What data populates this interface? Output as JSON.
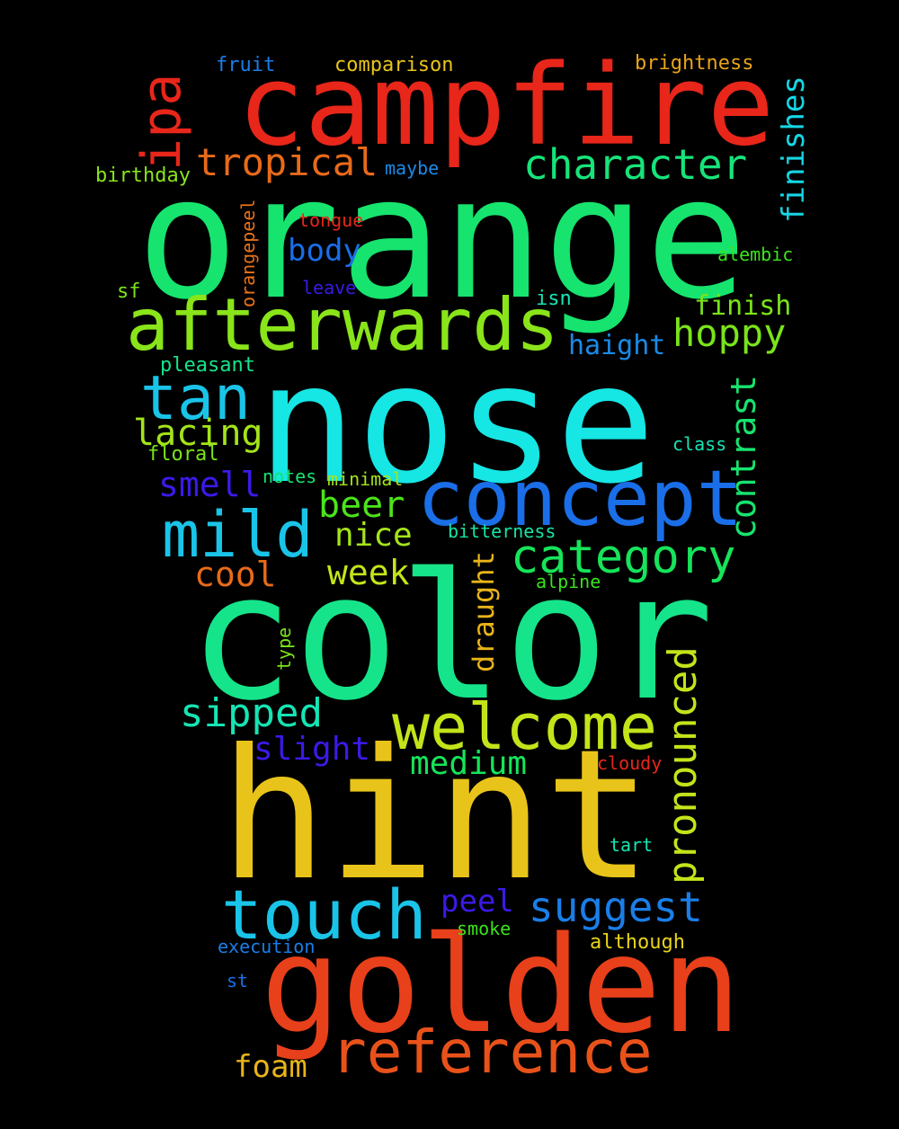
{
  "words": [
    {
      "text": "orange",
      "color": "#16e46e"
    },
    {
      "text": "nose",
      "color": "#16e6e4"
    },
    {
      "text": "color",
      "color": "#16e48a"
    },
    {
      "text": "hint",
      "color": "#e8c41a"
    },
    {
      "text": "campfire",
      "color": "#e8261a"
    },
    {
      "text": "golden",
      "color": "#e8401a"
    },
    {
      "text": "concept",
      "color": "#1a6ee8"
    },
    {
      "text": "afterwards",
      "color": "#8ae41a"
    },
    {
      "text": "welcome",
      "color": "#c4e41a"
    },
    {
      "text": "mild",
      "color": "#1ac4e8"
    },
    {
      "text": "touch",
      "color": "#1ac4e8"
    },
    {
      "text": "reference",
      "color": "#e8521a"
    },
    {
      "text": "tan",
      "color": "#1ac4e8"
    },
    {
      "text": "ipa",
      "color": "#e8261a"
    },
    {
      "text": "category",
      "color": "#16e45a"
    },
    {
      "text": "character",
      "color": "#16e47a"
    },
    {
      "text": "tropical",
      "color": "#e86a1a"
    },
    {
      "text": "suggest",
      "color": "#1a7ee8"
    },
    {
      "text": "pronounced",
      "color": "#c4e41a"
    },
    {
      "text": "sipped",
      "color": "#16e4b4"
    },
    {
      "text": "contrast",
      "color": "#16e46e"
    },
    {
      "text": "hoppy",
      "color": "#7ae41a"
    },
    {
      "text": "lacing",
      "color": "#a4e41a"
    },
    {
      "text": "beer",
      "color": "#4ae41a"
    },
    {
      "text": "medium",
      "color": "#16e45a"
    },
    {
      "text": "finishes",
      "color": "#16d6e4"
    },
    {
      "text": "slight",
      "color": "#3a1ae8"
    },
    {
      "text": "smell",
      "color": "#3a1ae8"
    },
    {
      "text": "body",
      "color": "#1a6ee8"
    },
    {
      "text": "week",
      "color": "#c4e41a"
    },
    {
      "text": "nice",
      "color": "#a4e41a"
    },
    {
      "text": "cool",
      "color": "#e86a1a"
    },
    {
      "text": "peel",
      "color": "#3a1ae8"
    },
    {
      "text": "foam",
      "color": "#e8b41a"
    },
    {
      "text": "draught",
      "color": "#e8b41a"
    },
    {
      "text": "haight",
      "color": "#1a8ae8"
    },
    {
      "text": "finish",
      "color": "#7ae41a"
    },
    {
      "text": "fruit",
      "color": "#1a7ee8"
    },
    {
      "text": "comparison",
      "color": "#e8c41a"
    },
    {
      "text": "brightness",
      "color": "#e8a41a"
    },
    {
      "text": "birthday",
      "color": "#8ae41a"
    },
    {
      "text": "maybe",
      "color": "#1a8ae8"
    },
    {
      "text": "tongue",
      "color": "#e8261a"
    },
    {
      "text": "orangepeel",
      "color": "#e8721a"
    },
    {
      "text": "alembic",
      "color": "#3ae41a"
    },
    {
      "text": "sf",
      "color": "#7ae41a"
    },
    {
      "text": "leave",
      "color": "#3a1ae8"
    },
    {
      "text": "isn",
      "color": "#16e4b4"
    },
    {
      "text": "pleasant",
      "color": "#16e48a"
    },
    {
      "text": "class",
      "color": "#16e4b4"
    },
    {
      "text": "floral",
      "color": "#7ae41a"
    },
    {
      "text": "notes",
      "color": "#16e46e"
    },
    {
      "text": "minimal",
      "color": "#a4e41a"
    },
    {
      "text": "bitterness",
      "color": "#16e4a4"
    },
    {
      "text": "alpine",
      "color": "#3ae41a"
    },
    {
      "text": "type",
      "color": "#7ae41a"
    },
    {
      "text": "cloudy",
      "color": "#e8261a"
    },
    {
      "text": "tart",
      "color": "#16e4b4"
    },
    {
      "text": "smoke",
      "color": "#3ae41a"
    },
    {
      "text": "execution",
      "color": "#1a7ee8"
    },
    {
      "text": "although",
      "color": "#e8d41a"
    },
    {
      "text": "st",
      "color": "#1a6ee8"
    }
  ]
}
